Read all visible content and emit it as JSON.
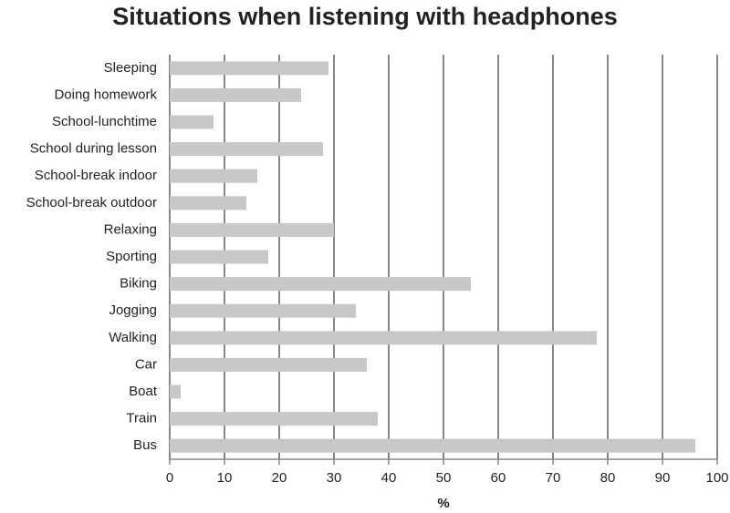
{
  "chart_data": {
    "type": "barh",
    "title": "Situations when listening with headphones",
    "xlabel": "%",
    "categories": [
      "Sleeping",
      "Doing homework",
      "School-lunchtime",
      "School during lesson",
      "School-break indoor",
      "School-break outdoor",
      "Relaxing",
      "Sporting",
      "Biking",
      "Jogging",
      "Walking",
      "Car",
      "Boat",
      "Train",
      "Bus"
    ],
    "values": [
      29,
      24,
      8,
      28,
      16,
      14,
      30,
      18,
      55,
      34,
      78,
      36,
      2,
      38,
      96
    ],
    "color": "#c8c8c8",
    "xlim": [
      0,
      100
    ],
    "xticks": [
      0,
      10,
      20,
      30,
      40,
      50,
      60,
      70,
      80,
      90,
      100
    ],
    "grid": true
  }
}
